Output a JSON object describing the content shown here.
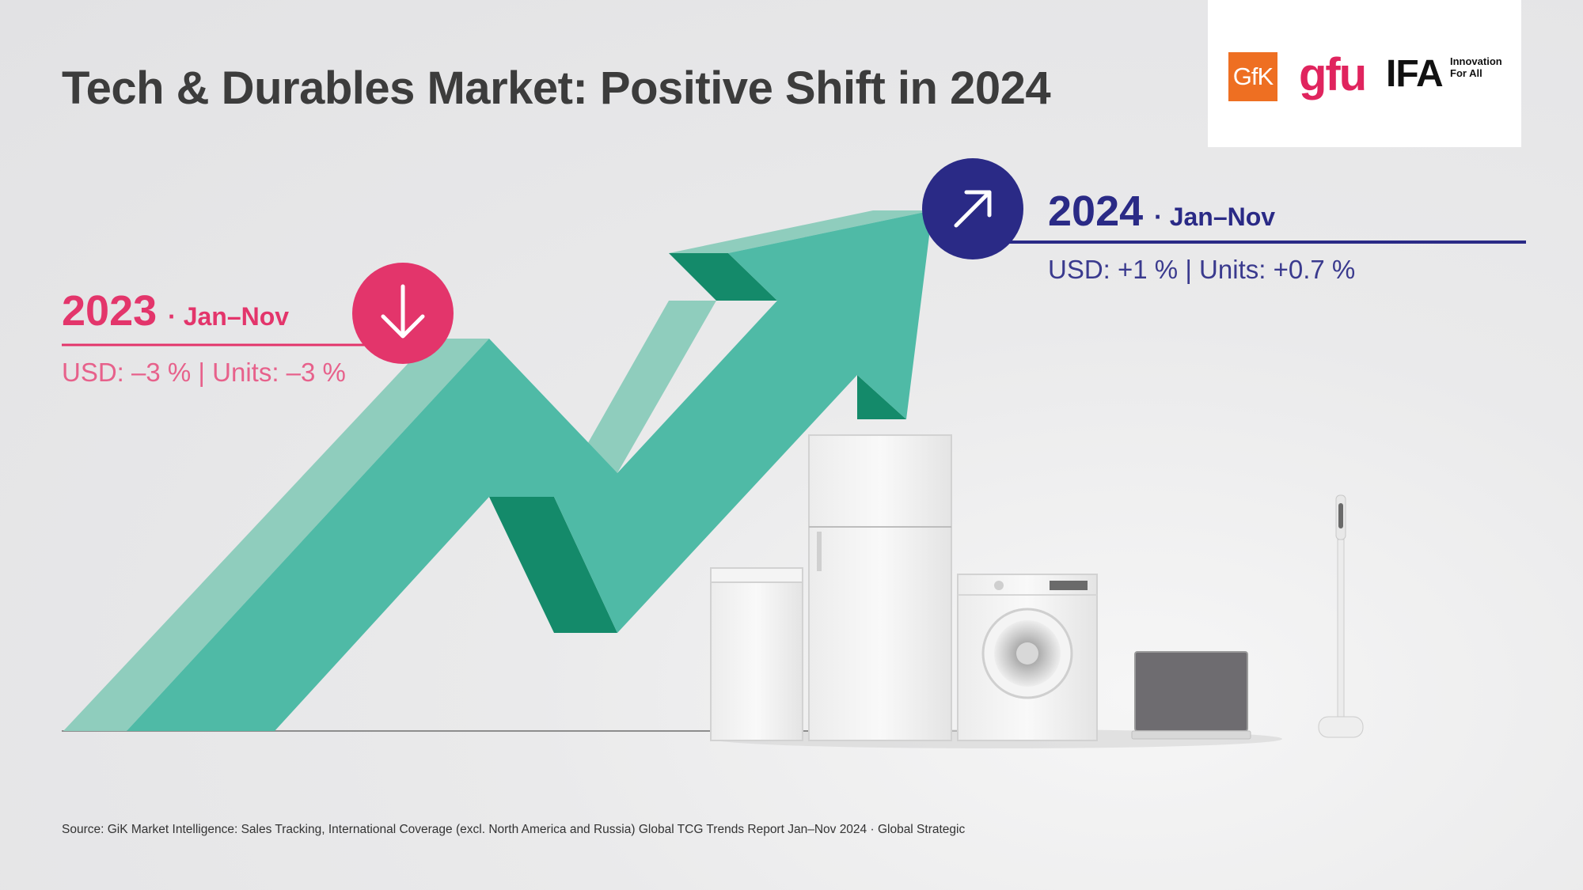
{
  "title": "Tech & Durables Market: Positive Shift in 2024",
  "logos": {
    "gfk": "GfK",
    "gfu": "gfu",
    "ifa": "IFA",
    "ifa_tagline": "Innovation For All"
  },
  "period_2023": {
    "year": "2023",
    "period": "· Jan–Nov",
    "metrics": "USD: –3 % | Units: –3 %",
    "trend_icon": "arrow-down-icon"
  },
  "period_2024": {
    "year": "2024",
    "period": "· Jan–Nov",
    "metrics": "USD: +1 % | Units: +0.7 %",
    "trend_icon": "arrow-up-right-icon"
  },
  "source": "Source: GiK Market Intelligence: Sales Tracking, International Coverage (excl. North America and Russia) Global TCG Trends Report Jan–Nov 2024 · Global Strategic",
  "colors": {
    "arrow_green": "#4fbaa6",
    "arrow_light": "#8fcdbd",
    "arrow_dark": "#148a6a",
    "accent_2023": "#e3356b",
    "accent_2024": "#2a2a86",
    "gfk_orange": "#ee6f22",
    "gfu_pink": "#e0245e"
  }
}
